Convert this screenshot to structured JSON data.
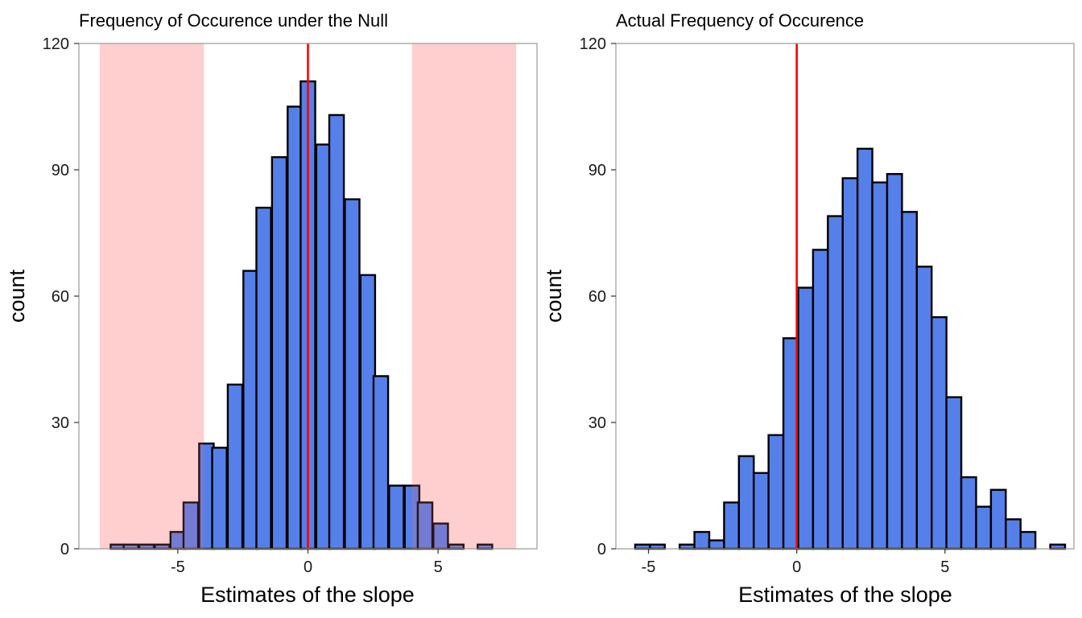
{
  "chart_data": [
    {
      "type": "bar",
      "title": "Frequency of Occurence under the Null",
      "xlabel": "Estimates of the slope",
      "ylabel": "count",
      "xlim": [
        -8.8,
        8.8
      ],
      "ylim": [
        0,
        120
      ],
      "x_ticks": [
        -5,
        0,
        5
      ],
      "x_tick_labels": [
        "-5",
        "0",
        "5"
      ],
      "y_ticks": [
        0,
        30,
        60,
        90,
        120
      ],
      "y_tick_labels": [
        "0",
        "30",
        "60",
        "90",
        "120"
      ],
      "bin_width": 0.56,
      "bin_centers": [
        -8.4,
        -7.3,
        -6.8,
        -6.2,
        -5.6,
        -5.0,
        -4.5,
        -3.9,
        -3.4,
        -2.8,
        -2.2,
        -1.7,
        -1.1,
        -0.5,
        0.0,
        0.6,
        1.1,
        1.7,
        2.3,
        2.8,
        3.4,
        4.0,
        4.5,
        5.1,
        5.7,
        6.8
      ],
      "counts": [
        0,
        1,
        1,
        1,
        1,
        4,
        11,
        25,
        24,
        39,
        66,
        81,
        93,
        105,
        111,
        96,
        103,
        83,
        65,
        41,
        15,
        15,
        11,
        6,
        1,
        1
      ],
      "reference_line": 0,
      "rejection_regions": [
        [
          -8,
          -4
        ],
        [
          4,
          8
        ]
      ],
      "grid": false,
      "colors": {
        "bar_fill": "#5680E9",
        "bar_outline": "#000000",
        "reference_line": "#FF0000",
        "region_fill": "#FFE4E4",
        "panel_border": "#999999"
      }
    },
    {
      "type": "bar",
      "title": "Actual Frequency of Occurence",
      "xlabel": "Estimates of the slope",
      "ylabel": "count",
      "xlim": [
        -6.1,
        9.35
      ],
      "ylim": [
        0,
        120
      ],
      "x_ticks": [
        -5,
        0,
        5
      ],
      "x_tick_labels": [
        "-5",
        "0",
        "5"
      ],
      "y_ticks": [
        0,
        30,
        60,
        90,
        120
      ],
      "y_tick_labels": [
        "0",
        "30",
        "60",
        "90",
        "120"
      ],
      "bin_width": 0.5,
      "bin_centers": [
        -5.2,
        -4.7,
        -3.7,
        -3.2,
        -2.7,
        -2.2,
        -1.7,
        -1.2,
        -0.7,
        -0.2,
        0.3,
        0.8,
        1.3,
        1.8,
        2.3,
        2.8,
        3.3,
        3.8,
        4.3,
        4.8,
        5.3,
        5.8,
        6.3,
        6.8,
        7.3,
        7.8,
        8.8
      ],
      "counts": [
        1,
        1,
        1,
        4,
        2,
        11,
        22,
        18,
        27,
        50,
        62,
        71,
        79,
        88,
        95,
        87,
        89,
        80,
        67,
        55,
        36,
        17,
        10,
        14,
        7,
        4,
        1
      ],
      "reference_line": 0,
      "grid": false,
      "colors": {
        "bar_fill": "#5680E9",
        "bar_outline": "#000000",
        "reference_line": "#FF0000",
        "panel_border": "#999999"
      }
    }
  ]
}
